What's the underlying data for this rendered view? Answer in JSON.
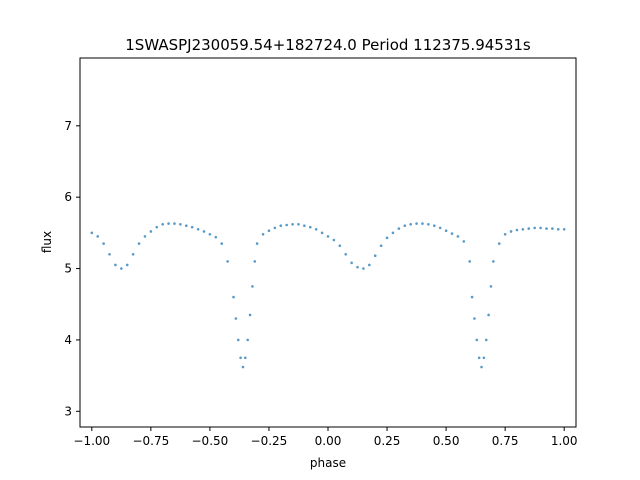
{
  "chart_data": {
    "type": "scatter",
    "title": "1SWASPJ230059.54+182724.0 Period 112375.94531s",
    "xlabel": "phase",
    "ylabel": "flux",
    "xlim": [
      -1.05,
      1.05
    ],
    "ylim": [
      2.78,
      7.95
    ],
    "x_ticks": [
      -1.0,
      -0.75,
      -0.5,
      -0.25,
      0.0,
      0.25,
      0.5,
      0.75,
      1.0
    ],
    "x_tick_labels": [
      "−1.00",
      "−0.75",
      "−0.50",
      "−0.25",
      "0.00",
      "0.25",
      "0.50",
      "0.75",
      "1.00"
    ],
    "y_ticks": [
      3,
      4,
      5,
      6,
      7
    ],
    "y_tick_labels": [
      "3",
      "4",
      "5",
      "6",
      "7"
    ],
    "grid": false,
    "legend": "none",
    "point_color": "#1f77b4",
    "series": [
      {
        "x": [
          -1.0,
          -0.975,
          -0.95,
          -0.925,
          -0.9,
          -0.875,
          -0.85,
          -0.825,
          -0.8,
          -0.775,
          -0.75,
          -0.725,
          -0.7,
          -0.675,
          -0.65,
          -0.625,
          -0.6,
          -0.575,
          -0.55,
          -0.525,
          -0.5,
          -0.475,
          -0.45,
          -0.425,
          -0.4,
          -0.39,
          -0.38,
          -0.37,
          -0.36,
          -0.35,
          -0.34,
          -0.33,
          -0.32,
          -0.31,
          -0.3,
          -0.275,
          -0.25,
          -0.225,
          -0.2,
          -0.175,
          -0.15,
          -0.125,
          -0.1,
          -0.075,
          -0.05,
          -0.025,
          0.0,
          0.025,
          0.05,
          0.075,
          0.1,
          0.125,
          0.15,
          0.175,
          0.2,
          0.225,
          0.25,
          0.275,
          0.3,
          0.325,
          0.35,
          0.375,
          0.4,
          0.425,
          0.45,
          0.475,
          0.5,
          0.525,
          0.55,
          0.575,
          0.6,
          0.61,
          0.62,
          0.63,
          0.64,
          0.65,
          0.66,
          0.67,
          0.68,
          0.69,
          0.7,
          0.725,
          0.75,
          0.775,
          0.8,
          0.825,
          0.85,
          0.875,
          0.9,
          0.925,
          0.95,
          0.975,
          1.0
        ],
        "y": [
          5.5,
          5.45,
          5.35,
          5.2,
          5.05,
          5.0,
          5.05,
          5.2,
          5.35,
          5.45,
          5.52,
          5.58,
          5.62,
          5.63,
          5.63,
          5.62,
          5.6,
          5.58,
          5.55,
          5.52,
          5.48,
          5.44,
          5.35,
          5.1,
          4.6,
          4.3,
          4.0,
          3.75,
          3.62,
          3.75,
          4.0,
          4.35,
          4.75,
          5.1,
          5.35,
          5.48,
          5.53,
          5.57,
          5.6,
          5.61,
          5.62,
          5.62,
          5.6,
          5.58,
          5.55,
          5.5,
          5.45,
          5.4,
          5.32,
          5.2,
          5.08,
          5.02,
          5.0,
          5.05,
          5.18,
          5.32,
          5.43,
          5.5,
          5.56,
          5.6,
          5.62,
          5.63,
          5.63,
          5.62,
          5.6,
          5.57,
          5.53,
          5.49,
          5.45,
          5.38,
          5.1,
          4.6,
          4.3,
          4.0,
          3.75,
          3.62,
          3.75,
          4.0,
          4.35,
          4.75,
          5.1,
          5.35,
          5.48,
          5.52,
          5.54,
          5.55,
          5.56,
          5.57,
          5.57,
          5.56,
          5.56,
          5.55,
          5.55
        ]
      }
    ]
  }
}
